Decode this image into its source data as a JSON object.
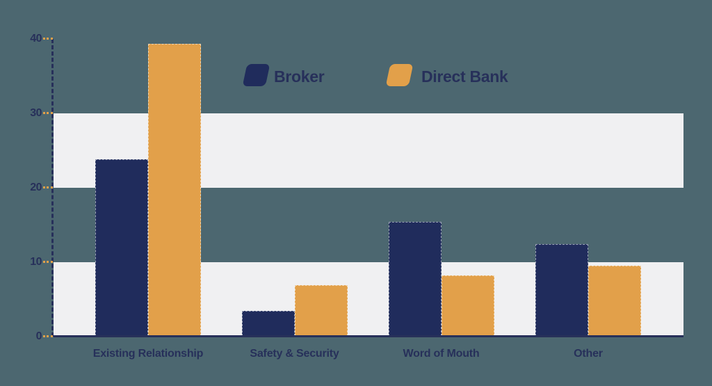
{
  "chart_data": {
    "type": "bar",
    "title": "",
    "categories": [
      "Existing Relationship",
      "Safety & Security",
      "Word of Mouth",
      "Other"
    ],
    "series": [
      {
        "name": "Broker",
        "color": "#202c5c",
        "values": [
          23.8,
          3.4,
          15.4,
          12.4
        ]
      },
      {
        "name": "Direct Bank",
        "color": "#e2a04a",
        "values": [
          39.3,
          6.9,
          8.2,
          9.5
        ]
      }
    ],
    "y_axis": {
      "min": 0,
      "max": 40,
      "tick_interval": 10,
      "ticks": [
        40,
        30,
        20,
        10,
        0
      ]
    },
    "xlabel": "",
    "ylabel": "",
    "legend_position": "top-center",
    "grid": "alternating horizontal bands",
    "grid_bands": [
      [
        20,
        30
      ],
      [
        0,
        10
      ]
    ]
  },
  "colors": {
    "background": "#4c6770",
    "band": "#f0f0f2",
    "axis": "#27305a",
    "text": "#27305a",
    "tick": "#e2a04a",
    "broker": "#202c5c",
    "direct_bank": "#e2a04a"
  }
}
